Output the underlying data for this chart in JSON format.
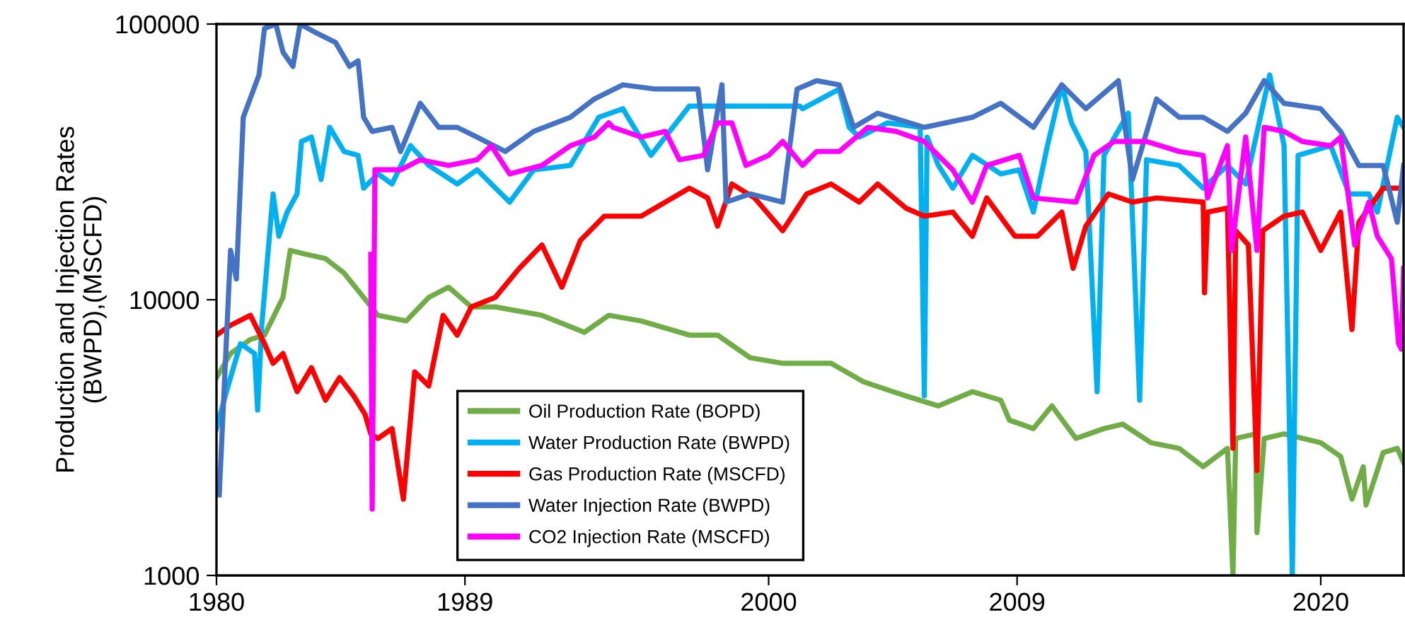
{
  "chart_data": {
    "type": "line",
    "ylabel": "Production and Injection Rates\n(BWPD),(MSCFD)",
    "log": "y",
    "xlim": [
      1980,
      2023
    ],
    "ylim": [
      1000,
      100000
    ],
    "xticks": [
      1980,
      1989,
      2000,
      2009,
      2020
    ],
    "yticks": [
      1000,
      10000,
      100000
    ],
    "grid": false,
    "legend": "bottom",
    "marker": "none",
    "line_style": "solid",
    "series": [
      {
        "name": "Oil Production Rate (BOPD)",
        "color": "#70ad47",
        "x": [
          1980,
          1980.51,
          1981.23,
          1981.74,
          1982.41,
          1982.67,
          1983.28,
          1983.95,
          1984.62,
          1985.33,
          1985.85,
          1986.87,
          1987.69,
          1988.41,
          1989.23,
          1990.1,
          1991.79,
          1993.33,
          1994.21,
          1995.38,
          1997.13,
          1998.15,
          1999.33,
          2000.51,
          2002.26,
          2003.44,
          2004.97,
          2006.15,
          2007.38,
          2008.41,
          2008.72,
          2009.59,
          2010.26,
          2011.13,
          2012.15,
          2012.82,
          2013.85,
          2014.87,
          2015.74,
          2016.62,
          2016.82,
          2016.92,
          2017.64,
          2017.69,
          2017.95,
          2018.67,
          2020.0,
          2020.72,
          2021.13,
          2021.54,
          2021.64,
          2022.26,
          2022.77,
          2023
        ],
        "values": [
          5220,
          6380,
          7180,
          7440,
          10200,
          15100,
          14600,
          14100,
          12500,
          10200,
          8780,
          8380,
          10200,
          11100,
          9420,
          9420,
          8780,
          7620,
          8780,
          8380,
          7440,
          7440,
          6160,
          5880,
          5880,
          5040,
          4480,
          4120,
          4640,
          4320,
          3660,
          3410,
          4120,
          3140,
          3410,
          3540,
          3030,
          2890,
          2480,
          2890,
          1000,
          3140,
          3260,
          1430,
          3140,
          3260,
          3030,
          2700,
          1890,
          2480,
          1800,
          2790,
          2890,
          2570
        ]
      },
      {
        "name": "Water Production Rate (BWPD)",
        "color": "#00b0f0",
        "x": [
          1980,
          1980.36,
          1980.87,
          1981.38,
          1981.49,
          1981.64,
          1982.05,
          1982.26,
          1982.56,
          1982.92,
          1983.08,
          1983.44,
          1983.79,
          1984.1,
          1984.62,
          1985.13,
          1985.33,
          1985.85,
          1986.36,
          1987.03,
          1987.69,
          1988.72,
          1989.44,
          1990.62,
          1991.49,
          1992.82,
          1993.85,
          1994.72,
          1995.74,
          1997.13,
          2001.13,
          2001.23,
          2002.56,
          2002.92,
          2003.28,
          2004.31,
          2005.49,
          2005.64,
          2005.74,
          2006.15,
          2006.67,
          2007.38,
          2008.41,
          2009.08,
          2009.59,
          2010.1,
          2010.62,
          2010.97,
          2011.49,
          2011.9,
          2012.15,
          2013.03,
          2013.44,
          2013.69,
          2014.87,
          2015.74,
          2016.62,
          2017.28,
          2018.15,
          2018.67,
          2018.97,
          2019.18,
          2020.36,
          2021.03,
          2021.74,
          2022.05,
          2022.77,
          2023
        ],
        "values": [
          3410,
          4640,
          6930,
          6380,
          3980,
          8080,
          24200,
          17000,
          20800,
          24200,
          37500,
          38900,
          27300,
          42200,
          34500,
          33400,
          25400,
          28600,
          26300,
          36200,
          30700,
          26300,
          29600,
          22600,
          29600,
          30700,
          45900,
          49300,
          33400,
          50400,
          50400,
          49300,
          58100,
          42200,
          38900,
          43800,
          42200,
          4480,
          38900,
          30700,
          25400,
          33400,
          28600,
          29600,
          20800,
          36200,
          60200,
          43800,
          34500,
          4640,
          33400,
          47500,
          4320,
          32200,
          30700,
          25400,
          30700,
          26300,
          65400,
          36200,
          1000,
          33400,
          36200,
          24200,
          24200,
          20800,
          45900,
          42200
        ]
      },
      {
        "name": "Gas Production Rate (MSCFD)",
        "color": "#ff0000",
        "x": [
          1980,
          1980.51,
          1981.23,
          1981.74,
          1982.05,
          1982.41,
          1982.92,
          1983.44,
          1983.95,
          1984.46,
          1984.97,
          1985.38,
          1985.59,
          1985.85,
          1986.36,
          1986.77,
          1987.18,
          1987.69,
          1988.21,
          1988.72,
          1989.23,
          1990.1,
          1990.97,
          1991.79,
          1992.51,
          1993.18,
          1994.05,
          1995.38,
          1996.26,
          1997.13,
          1997.79,
          1998.15,
          1998.67,
          1999.49,
          2000.51,
          2001.38,
          2002.26,
          2003.28,
          2003.95,
          2004.97,
          2005.64,
          2006.67,
          2007.38,
          2007.9,
          2008.92,
          2009.74,
          2010.62,
          2011.03,
          2011.49,
          2012.31,
          2013.18,
          2014.05,
          2015.74,
          2015.79,
          2015.9,
          2016.62,
          2016.82,
          2016.92,
          2017.38,
          2017.69,
          2017.9,
          2018.67,
          2019.33,
          2020.0,
          2020.72,
          2021.13,
          2021.38,
          2022.26,
          2023
        ],
        "values": [
          7440,
          8080,
          8780,
          6930,
          5880,
          6380,
          4640,
          5670,
          4320,
          5220,
          4480,
          3840,
          3260,
          3140,
          3410,
          1890,
          5470,
          4870,
          8780,
          7440,
          9420,
          10200,
          13000,
          15800,
          11100,
          16400,
          20100,
          20100,
          22600,
          25400,
          23400,
          18500,
          26300,
          23400,
          17800,
          24200,
          26300,
          22600,
          26300,
          21500,
          20100,
          20800,
          17000,
          23400,
          17000,
          17000,
          20800,
          13000,
          18500,
          24200,
          22600,
          23400,
          22600,
          10600,
          20800,
          21500,
          2890,
          17800,
          15800,
          2400,
          17800,
          20100,
          20800,
          15100,
          20800,
          7800,
          19100,
          25400,
          25400
        ]
      },
      {
        "name": "Water Injection Rate (BWPD)",
        "color": "#4472c4",
        "x": [
          1980.1,
          1980.51,
          1980.72,
          1980.97,
          1981.54,
          1981.74,
          1982.15,
          1982.41,
          1982.77,
          1983.03,
          1983.59,
          1984.31,
          1984.82,
          1985.13,
          1985.33,
          1985.64,
          1986.36,
          1986.67,
          1987.38,
          1988.05,
          1988.72,
          1989.44,
          1990.46,
          1991.49,
          1992.82,
          1993.69,
          1994.72,
          1995.9,
          1997.44,
          1997.79,
          1998.31,
          1998.46,
          1999.33,
          2000.51,
          2001.03,
          2001.74,
          2002.56,
          2003.08,
          2003.95,
          2005.64,
          2007.38,
          2008.41,
          2009.59,
          2010.62,
          2011.49,
          2012.67,
          2013.18,
          2014.05,
          2014.87,
          2015.74,
          2016.62,
          2017.28,
          2017.95,
          2018.67,
          2020.0,
          2020.72,
          2021.38,
          2022.26,
          2022.77,
          2023
        ],
        "values": [
          1960,
          15100,
          11900,
          45900,
          65400,
          96500,
          100000,
          79000,
          70200,
          100000,
          93100,
          85800,
          70200,
          73500,
          45900,
          40800,
          42200,
          34500,
          51600,
          42200,
          42200,
          38900,
          34500,
          40800,
          45900,
          53500,
          60200,
          58100,
          58100,
          29600,
          60200,
          22600,
          24200,
          22600,
          58100,
          62300,
          60200,
          42200,
          47500,
          42200,
          45900,
          51600,
          42200,
          60200,
          49300,
          62300,
          27300,
          53500,
          45900,
          45900,
          40800,
          47500,
          62300,
          51600,
          49300,
          40800,
          30700,
          30700,
          19100,
          30700
        ]
      },
      {
        "name": "CO2 Injection Rate (MSCFD)",
        "color": "#ff00ff",
        "x": [
          1985.59,
          1985.64,
          1985.74,
          1986.67,
          1987.38,
          1988.41,
          1989.44,
          1989.95,
          1990.62,
          1991.79,
          1992.82,
          1993.69,
          1994.21,
          1994.36,
          1995.38,
          1996.26,
          1996.77,
          1997.64,
          1998.15,
          1998.67,
          1999.18,
          2000.0,
          2000.51,
          2001.23,
          2001.74,
          2002.56,
          2003.59,
          2004.62,
          2005.64,
          2006.67,
          2007.38,
          2007.9,
          2009.08,
          2009.59,
          2011.13,
          2011.79,
          2012.51,
          2013.69,
          2014.87,
          2015.74,
          2015.9,
          2016.62,
          2016.77,
          2017.28,
          2017.69,
          2017.95,
          2018.67,
          2019.33,
          2020.36,
          2020.72,
          2021.23,
          2021.74,
          2022.05,
          2022.56,
          2022.82,
          2022.92,
          2023
        ],
        "values": [
          14600,
          1740,
          29600,
          29600,
          32200,
          30700,
          32200,
          36200,
          28600,
          30700,
          36200,
          38900,
          43800,
          42200,
          38900,
          40800,
          32200,
          33400,
          43800,
          43800,
          30700,
          33400,
          37500,
          30700,
          34500,
          34500,
          42200,
          40800,
          37500,
          29600,
          22600,
          30700,
          33400,
          23400,
          22600,
          33400,
          37500,
          37500,
          34500,
          33400,
          23400,
          36200,
          15100,
          38900,
          15100,
          42200,
          40800,
          37500,
          36200,
          38900,
          15800,
          22600,
          17000,
          14100,
          6930,
          6620,
          13000
        ]
      }
    ]
  }
}
